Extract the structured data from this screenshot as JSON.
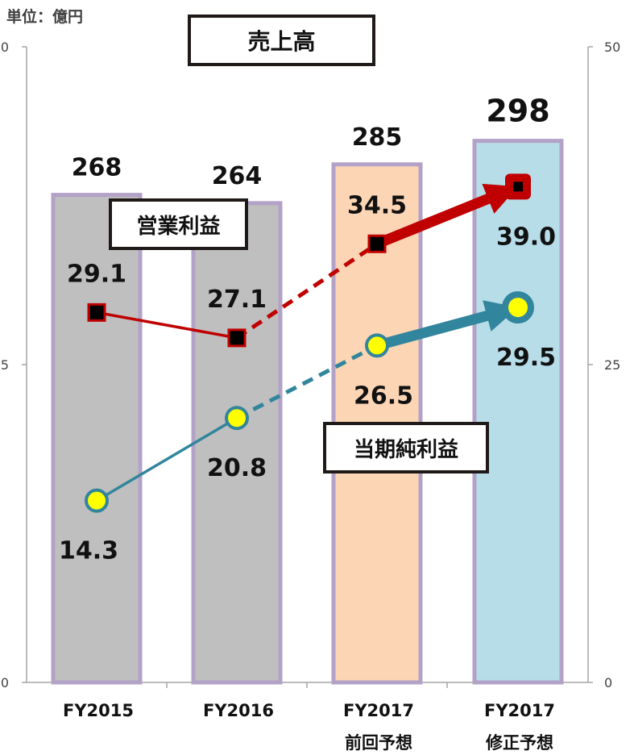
{
  "unit_label": "単位：億円",
  "labels": {
    "sales": "売上高",
    "operating_profit": "営業利益",
    "net_income": "当期純利益"
  },
  "colors": {
    "bar_gray": "#bfbfbf",
    "bar_orange": "#fcd5b5",
    "bar_blue": "#b7dde8",
    "bar_border": "#b3a2c7",
    "operating_line": "#c00000",
    "net_line": "#31859c",
    "net_marker": "#ffff00"
  },
  "chart_data": {
    "type": "bar",
    "categories": [
      "FY2015",
      "FY2016",
      "FY2017",
      "FY2017"
    ],
    "category_sublabels": [
      "",
      "",
      "前回予想",
      "修正予想"
    ],
    "left_axis": {
      "ticks": [
        "0",
        "5",
        "0"
      ]
    },
    "right_axis": {
      "ticks": [
        "50",
        "25",
        "0"
      ],
      "ylim": [
        0,
        50
      ]
    },
    "bar_labels": [
      "268",
      "264",
      "285",
      "298"
    ],
    "bars_relative_height": [
      0.767,
      0.754,
      0.815,
      0.852
    ],
    "series": [
      {
        "key": "operating_profit",
        "values": [
          29.1,
          27.1,
          34.5,
          39.0
        ],
        "labels": [
          "29.1",
          "27.1",
          "34.5",
          "39.0"
        ]
      },
      {
        "key": "net_income",
        "values": [
          14.3,
          20.8,
          26.5,
          29.5
        ],
        "labels": [
          "14.3",
          "20.8",
          "26.5",
          "29.5"
        ]
      }
    ]
  }
}
